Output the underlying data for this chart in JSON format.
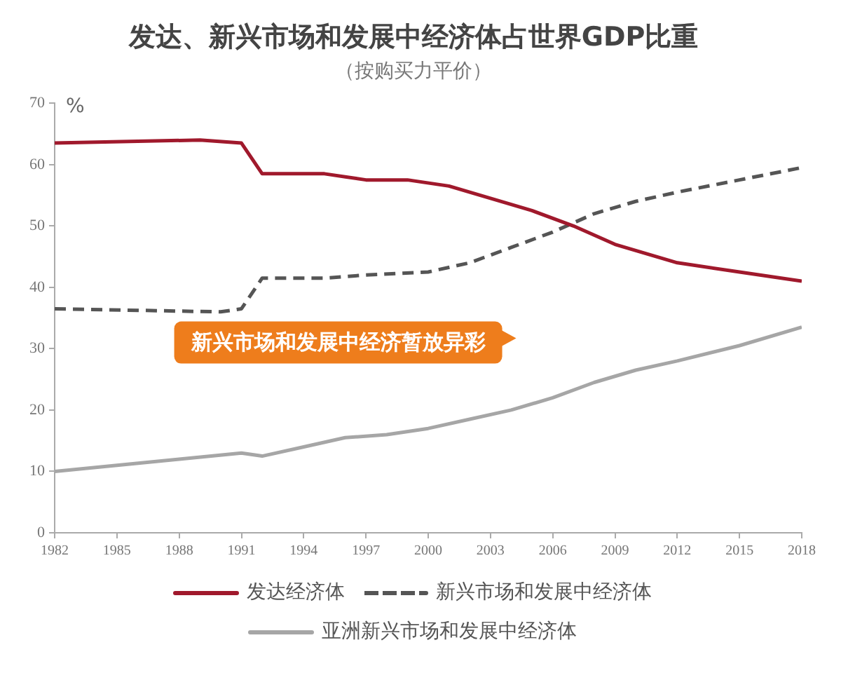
{
  "chart_data": {
    "type": "line",
    "title": "发达、新兴市场和发展中经济体占世界GDP比重",
    "subtitle": "（按购买力平价）",
    "ylabel": "%",
    "annotations": [
      "新兴市场和发展中经济暂放异彩"
    ],
    "xlim": [
      1982,
      2018
    ],
    "xticks": [
      1982,
      1985,
      1988,
      1991,
      1994,
      1997,
      2000,
      2003,
      2006,
      2009,
      2012,
      2015,
      2018
    ],
    "ylim": [
      0,
      70
    ],
    "yticks": [
      0,
      10,
      20,
      30,
      40,
      50,
      60,
      70
    ],
    "grid": false,
    "legend": "bottom",
    "marker": "none",
    "series": [
      {
        "name": "发达经济体",
        "color": "#a0192c",
        "line_style": "solid",
        "x": [
          1982,
          1989,
          1991,
          1992,
          1995,
          1997,
          1999,
          2001,
          2003,
          2005,
          2007,
          2009,
          2012,
          2015,
          2018
        ],
        "values": [
          63.5,
          64,
          63.5,
          58.5,
          58.5,
          57.5,
          57.5,
          56.5,
          54.5,
          52.5,
          50,
          47,
          44,
          42.5,
          41
        ]
      },
      {
        "name": "新兴市场和发展中经济体",
        "color": "#555555",
        "line_style": "dashed",
        "x": [
          1982,
          1990,
          1991,
          1992,
          1995,
          1997,
          2000,
          2002,
          2004,
          2006,
          2008,
          2010,
          2012,
          2015,
          2018
        ],
        "values": [
          36.5,
          36,
          36.5,
          41.5,
          41.5,
          42,
          42.5,
          44,
          46.5,
          49,
          52,
          54,
          55.5,
          57.5,
          59.5
        ]
      },
      {
        "name": "亚洲新兴市场和发展中经济体",
        "color": "#a6a6a6",
        "line_style": "solid",
        "x": [
          1982,
          1985,
          1988,
          1991,
          1992,
          1994,
          1996,
          1998,
          2000,
          2002,
          2004,
          2006,
          2008,
          2010,
          2012,
          2015,
          2018
        ],
        "values": [
          10,
          11,
          12,
          13,
          12.5,
          14,
          15.5,
          16,
          17,
          18.5,
          20,
          22,
          24.5,
          26.5,
          28,
          30.5,
          33.5
        ]
      }
    ]
  }
}
